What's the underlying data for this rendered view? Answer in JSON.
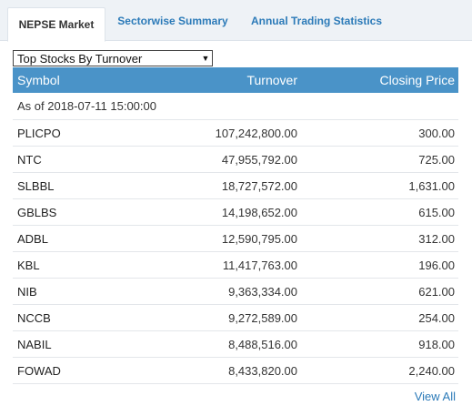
{
  "tabs": [
    {
      "label": "NEPSE Market",
      "active": true
    },
    {
      "label": "Sectorwise Summary",
      "active": false
    },
    {
      "label": "Annual Trading Statistics",
      "active": false
    }
  ],
  "filter": {
    "selected": "Top Stocks By Turnover",
    "arrow": "▼"
  },
  "table": {
    "headers": {
      "symbol": "Symbol",
      "turnover": "Turnover",
      "closing_price": "Closing Price"
    },
    "as_of": "As of 2018-07-11 15:00:00",
    "rows": [
      {
        "symbol": "PLICPO",
        "turnover": "107,242,800.00",
        "closing_price": "300.00"
      },
      {
        "symbol": "NTC",
        "turnover": "47,955,792.00",
        "closing_price": "725.00"
      },
      {
        "symbol": "SLBBL",
        "turnover": "18,727,572.00",
        "closing_price": "1,631.00"
      },
      {
        "symbol": "GBLBS",
        "turnover": "14,198,652.00",
        "closing_price": "615.00"
      },
      {
        "symbol": "ADBL",
        "turnover": "12,590,795.00",
        "closing_price": "312.00"
      },
      {
        "symbol": "KBL",
        "turnover": "11,417,763.00",
        "closing_price": "196.00"
      },
      {
        "symbol": "NIB",
        "turnover": "9,363,334.00",
        "closing_price": "621.00"
      },
      {
        "symbol": "NCCB",
        "turnover": "9,272,589.00",
        "closing_price": "254.00"
      },
      {
        "symbol": "NABIL",
        "turnover": "8,488,516.00",
        "closing_price": "918.00"
      },
      {
        "symbol": "FOWAD",
        "turnover": "8,433,820.00",
        "closing_price": "2,240.00"
      }
    ]
  },
  "footer": {
    "view_all": "View All"
  },
  "colors": {
    "header_bg": "#4a93c8",
    "link": "#2b7ab8",
    "tab_bar": "#eef2f6"
  }
}
